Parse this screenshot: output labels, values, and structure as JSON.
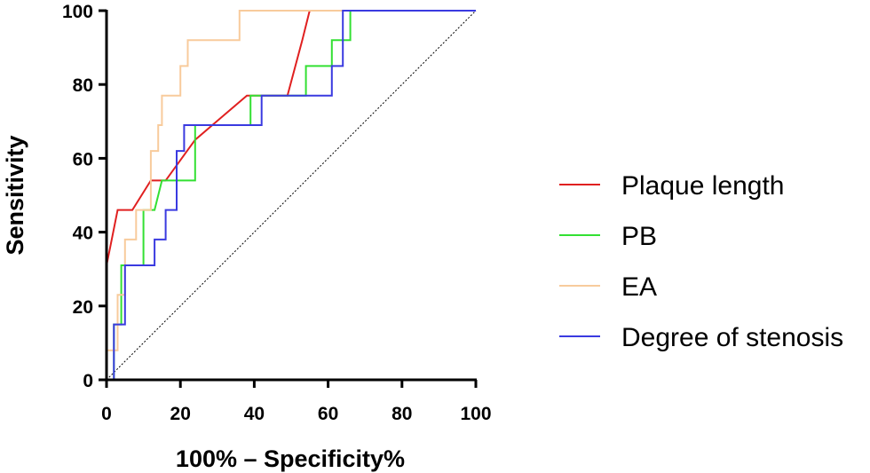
{
  "chart_data": {
    "type": "line",
    "title": "",
    "xlabel": "100% – Specificity%",
    "ylabel": "Sensitivity",
    "xlim": [
      0,
      100
    ],
    "ylim": [
      0,
      100
    ],
    "x_ticks": [
      0,
      20,
      40,
      60,
      80,
      100
    ],
    "y_ticks": [
      0,
      20,
      40,
      60,
      80,
      100
    ],
    "x_tick_labels": [
      "0",
      "20",
      "40",
      "60",
      "80",
      "100"
    ],
    "y_tick_labels": [
      "0",
      "20",
      "40",
      "60",
      "80",
      "100"
    ],
    "legend_position": "right",
    "reference_line": {
      "name": "chance",
      "x": [
        0,
        100
      ],
      "y": [
        0,
        100
      ],
      "color": "#000000",
      "style": "dotted"
    },
    "series": [
      {
        "name": "Plaque length",
        "color": "#e02020",
        "x": [
          0,
          0,
          1,
          3,
          7,
          12,
          16,
          24,
          38,
          49,
          53,
          55,
          100
        ],
        "y": [
          0,
          31,
          36,
          46,
          46,
          54,
          54,
          65,
          77,
          77,
          92,
          100,
          100
        ]
      },
      {
        "name": "PB",
        "color": "#33e033",
        "x": [
          0,
          2,
          2,
          4,
          4,
          10,
          10,
          13,
          15,
          15,
          24,
          24,
          39,
          39,
          54,
          54,
          61,
          61,
          66,
          66,
          100
        ],
        "y": [
          0,
          0,
          15,
          15,
          31,
          31,
          46,
          46,
          54,
          54,
          54,
          69,
          69,
          77,
          77,
          85,
          85,
          92,
          92,
          100,
          100
        ]
      },
      {
        "name": "EA",
        "color": "#f8cb9c",
        "x": [
          0,
          0,
          3,
          3,
          5,
          5,
          8,
          8,
          12,
          12,
          14,
          14,
          15,
          15,
          20,
          20,
          22,
          22,
          27,
          35,
          36,
          36,
          100
        ],
        "y": [
          0,
          8,
          8,
          23,
          23,
          38,
          38,
          46,
          46,
          62,
          62,
          69,
          69,
          77,
          77,
          85,
          85,
          92,
          92,
          92,
          92,
          100,
          100
        ]
      },
      {
        "name": "Degree of stenosis",
        "color": "#3a3ae0",
        "x": [
          0,
          2,
          2,
          5,
          5,
          11,
          11,
          13,
          13,
          16,
          16,
          19,
          19,
          21,
          21,
          42,
          42,
          61,
          61,
          64,
          64,
          100
        ],
        "y": [
          0,
          0,
          15,
          15,
          31,
          31,
          31,
          31,
          38,
          38,
          46,
          46,
          62,
          62,
          69,
          69,
          77,
          77,
          85,
          85,
          100,
          100
        ]
      }
    ]
  }
}
